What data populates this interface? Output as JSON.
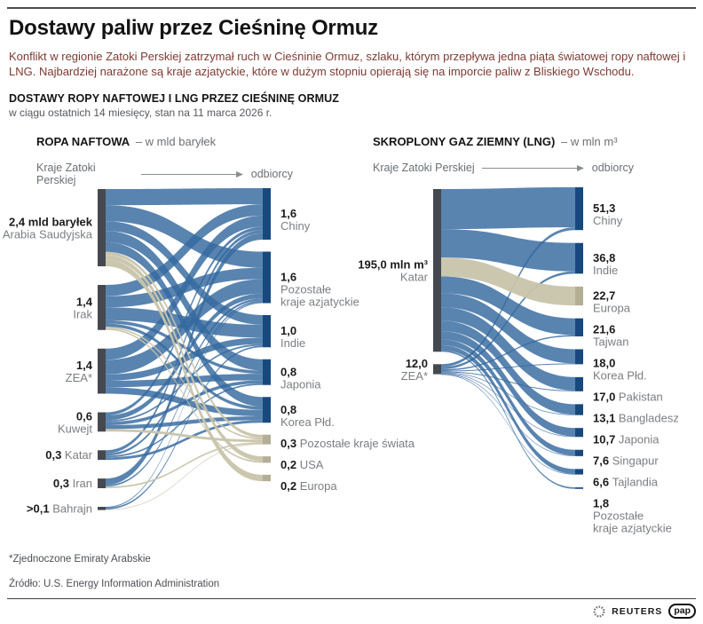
{
  "header": {
    "title": "Dostawy paliw przez Cieśninę Ormuz",
    "lead": "Konflikt w regionie Zatoki Perskiej zatrzymał ruch w Cieśninie Ormuz, szlaku, którym przepływa jedna piąta światowej ropy naftowej i LNG. Najbardziej narażone są kraje azjatyckie, które w dużym stopniu opierają się na imporcie paliw z Bliskiego Wschodu.",
    "section_title": "DOSTAWY ROPY NAFTOWEJ I LNG PRZEZ CIEŚNINĘ ORMUZ",
    "section_subtitle": "w ciągu ostatnich 14 miesięcy, stan na 11 marca 2026 r."
  },
  "colors": {
    "flow_main": "#35699f",
    "flow_other": "#c8c4ab",
    "node_source": "#45494f",
    "node_target": "#17497e",
    "node_target_other": "#b3ae96",
    "value_text": "#1b1b1b",
    "name_text": "#7b7e82",
    "lead_text": "#7e3a33"
  },
  "chart_data": [
    {
      "type": "sankey",
      "title": "ROPA NAFTOWA",
      "unit": "– w mld baryłek",
      "left_axis_label": "Kraje Zatoki Perskiej",
      "right_axis_label": "odbiorcy",
      "sources": [
        {
          "value_label": "2,4 mld baryłek",
          "name_lines": [
            "Arabia Saudyjska"
          ],
          "value": 2.4,
          "inline": false
        },
        {
          "value_label": "1,4",
          "name_lines": [
            "Irak"
          ],
          "value": 1.4,
          "inline": false
        },
        {
          "value_label": "1,4",
          "name_lines": [
            "ZEA*"
          ],
          "value": 1.4,
          "inline": false
        },
        {
          "value_label": "0,6",
          "name_lines": [
            "Kuwejt"
          ],
          "value": 0.6,
          "inline": false
        },
        {
          "value_label": "0,3",
          "name_lines": [
            "Katar"
          ],
          "value": 0.3,
          "inline": true
        },
        {
          "value_label": "0,3",
          "name_lines": [
            "Iran"
          ],
          "value": 0.3,
          "inline": true
        },
        {
          "value_label": ">0,1",
          "name_lines": [
            "Bahrajn"
          ],
          "value": 0.1,
          "inline": true
        }
      ],
      "targets": [
        {
          "value_label": "1,6",
          "name_lines": [
            "Chiny"
          ],
          "value": 1.6,
          "inline": false,
          "group": "asia"
        },
        {
          "value_label": "1,6",
          "name_lines": [
            "Pozostałe",
            "kraje azjatyckie"
          ],
          "value": 1.6,
          "inline": false,
          "group": "asia"
        },
        {
          "value_label": "1,0",
          "name_lines": [
            "Indie"
          ],
          "value": 1.0,
          "inline": false,
          "group": "asia"
        },
        {
          "value_label": "0,8",
          "name_lines": [
            "Japonia"
          ],
          "value": 0.8,
          "inline": false,
          "group": "asia"
        },
        {
          "value_label": "0,8",
          "name_lines": [
            "Korea Płd."
          ],
          "value": 0.8,
          "inline": false,
          "group": "asia"
        },
        {
          "value_label": "0,3",
          "name_lines": [
            "Pozostałe kraje świata"
          ],
          "value": 0.3,
          "inline": true,
          "group": "other"
        },
        {
          "value_label": "0,2",
          "name_lines": [
            "USA"
          ],
          "value": 0.2,
          "inline": true,
          "group": "other"
        },
        {
          "value_label": "0,2",
          "name_lines": [
            "Europa"
          ],
          "value": 0.2,
          "inline": true,
          "group": "other"
        }
      ],
      "links": [
        {
          "source": 0,
          "target": 0,
          "value": 0.5
        },
        {
          "source": 0,
          "target": 1,
          "value": 0.5
        },
        {
          "source": 0,
          "target": 2,
          "value": 0.3
        },
        {
          "source": 0,
          "target": 3,
          "value": 0.35
        },
        {
          "source": 0,
          "target": 4,
          "value": 0.3
        },
        {
          "source": 0,
          "target": 5,
          "value": 0.1
        },
        {
          "source": 0,
          "target": 6,
          "value": 0.15
        },
        {
          "source": 0,
          "target": 7,
          "value": 0.2
        },
        {
          "source": 1,
          "target": 0,
          "value": 0.35
        },
        {
          "source": 1,
          "target": 1,
          "value": 0.35
        },
        {
          "source": 1,
          "target": 2,
          "value": 0.4
        },
        {
          "source": 1,
          "target": 3,
          "value": 0.1
        },
        {
          "source": 1,
          "target": 4,
          "value": 0.1
        },
        {
          "source": 1,
          "target": 5,
          "value": 0.05
        },
        {
          "source": 1,
          "target": 6,
          "value": 0.05
        },
        {
          "source": 2,
          "target": 0,
          "value": 0.35
        },
        {
          "source": 2,
          "target": 1,
          "value": 0.45
        },
        {
          "source": 2,
          "target": 2,
          "value": 0.2
        },
        {
          "source": 2,
          "target": 3,
          "value": 0.2
        },
        {
          "source": 2,
          "target": 4,
          "value": 0.2
        },
        {
          "source": 3,
          "target": 0,
          "value": 0.1
        },
        {
          "source": 3,
          "target": 1,
          "value": 0.15
        },
        {
          "source": 3,
          "target": 2,
          "value": 0.05
        },
        {
          "source": 3,
          "target": 3,
          "value": 0.1
        },
        {
          "source": 3,
          "target": 4,
          "value": 0.12
        },
        {
          "source": 3,
          "target": 5,
          "value": 0.08
        },
        {
          "source": 4,
          "target": 0,
          "value": 0.1
        },
        {
          "source": 4,
          "target": 1,
          "value": 0.07
        },
        {
          "source": 4,
          "target": 3,
          "value": 0.05
        },
        {
          "source": 4,
          "target": 4,
          "value": 0.08
        },
        {
          "source": 5,
          "target": 0,
          "value": 0.2
        },
        {
          "source": 5,
          "target": 1,
          "value": 0.05
        },
        {
          "source": 5,
          "target": 5,
          "value": 0.05
        },
        {
          "source": 6,
          "target": 1,
          "value": 0.03
        },
        {
          "source": 6,
          "target": 2,
          "value": 0.05
        },
        {
          "source": 6,
          "target": 5,
          "value": 0.02
        }
      ]
    },
    {
      "type": "sankey",
      "title": "SKROPLONY GAZ ZIEMNY (LNG)",
      "unit": "– w mln m³",
      "left_axis_label": "Kraje Zatoki Perskiej",
      "right_axis_label": "odbiorcy",
      "sources": [
        {
          "value_label": "195,0 mln m³",
          "name_lines": [
            "Katar"
          ],
          "value": 195.0,
          "inline": false
        },
        {
          "value_label": "12,0",
          "name_lines": [
            "ZEA*"
          ],
          "value": 12.0,
          "inline": false
        }
      ],
      "targets": [
        {
          "value_label": "51,3",
          "name_lines": [
            "Chiny"
          ],
          "value": 51.3,
          "inline": false,
          "group": "asia"
        },
        {
          "value_label": "36,8",
          "name_lines": [
            "Indie"
          ],
          "value": 36.8,
          "inline": false,
          "group": "asia"
        },
        {
          "value_label": "22,7",
          "name_lines": [
            "Europa"
          ],
          "value": 22.7,
          "inline": false,
          "group": "other"
        },
        {
          "value_label": "21,6",
          "name_lines": [
            "Tajwan"
          ],
          "value": 21.6,
          "inline": false,
          "group": "asia"
        },
        {
          "value_label": "18,0",
          "name_lines": [
            "Korea Płd."
          ],
          "value": 18.0,
          "inline": false,
          "group": "asia"
        },
        {
          "value_label": "17,0",
          "name_lines": [
            "Pakistan"
          ],
          "value": 17.0,
          "inline": true,
          "group": "asia"
        },
        {
          "value_label": "13,1",
          "name_lines": [
            "Bangladesz"
          ],
          "value": 13.1,
          "inline": true,
          "group": "asia"
        },
        {
          "value_label": "10,7",
          "name_lines": [
            "Japonia"
          ],
          "value": 10.7,
          "inline": true,
          "group": "asia"
        },
        {
          "value_label": "7,6",
          "name_lines": [
            "Singapur"
          ],
          "value": 7.6,
          "inline": true,
          "group": "asia"
        },
        {
          "value_label": "6,6",
          "name_lines": [
            "Tajlandia"
          ],
          "value": 6.6,
          "inline": true,
          "group": "asia"
        },
        {
          "value_label": "1,8",
          "name_lines": [
            "Pozostałe",
            "kraje azjatyckie"
          ],
          "value": 1.8,
          "inline": false,
          "group": "asia"
        }
      ],
      "links": [
        {
          "source": 0,
          "target": 0,
          "value": 48.0
        },
        {
          "source": 0,
          "target": 1,
          "value": 34.0
        },
        {
          "source": 0,
          "target": 2,
          "value": 22.7
        },
        {
          "source": 0,
          "target": 3,
          "value": 20.0
        },
        {
          "source": 0,
          "target": 4,
          "value": 17.0
        },
        {
          "source": 0,
          "target": 5,
          "value": 16.0
        },
        {
          "source": 0,
          "target": 6,
          "value": 12.5
        },
        {
          "source": 0,
          "target": 7,
          "value": 10.0
        },
        {
          "source": 0,
          "target": 8,
          "value": 7.0
        },
        {
          "source": 0,
          "target": 9,
          "value": 6.0
        },
        {
          "source": 0,
          "target": 10,
          "value": 1.8
        },
        {
          "source": 1,
          "target": 0,
          "value": 3.3
        },
        {
          "source": 1,
          "target": 1,
          "value": 2.8
        },
        {
          "source": 1,
          "target": 3,
          "value": 1.6
        },
        {
          "source": 1,
          "target": 4,
          "value": 1.0
        },
        {
          "source": 1,
          "target": 5,
          "value": 1.0
        },
        {
          "source": 1,
          "target": 6,
          "value": 0.6
        },
        {
          "source": 1,
          "target": 7,
          "value": 0.7
        },
        {
          "source": 1,
          "target": 8,
          "value": 0.6
        },
        {
          "source": 1,
          "target": 9,
          "value": 0.6
        }
      ]
    }
  ],
  "footer": {
    "footnote": "*Zjednoczone Emiraty Arabskie",
    "source": "Źródło: U.S. Energy Information Administration",
    "reuters_label": "REUTERS",
    "pap_label": "pap"
  }
}
